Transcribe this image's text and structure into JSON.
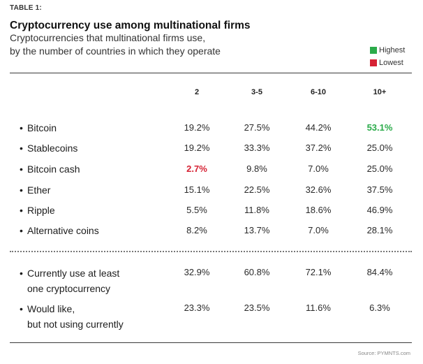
{
  "table_label": "TABLE 1:",
  "title": "Cryptocurrency use among multinational firms",
  "subtitle_line1": "Cryptocurrencies that multinational firms use,",
  "subtitle_line2": "by the number of countries in which they operate",
  "legend": [
    {
      "label": "Highest",
      "color": "#2bab4a"
    },
    {
      "label": "Lowest",
      "color": "#d62234"
    }
  ],
  "columns": [
    "2",
    "3-5",
    "6-10",
    "10+"
  ],
  "rows": [
    {
      "label": "Bitcoin",
      "values": [
        "19.2%",
        "27.5%",
        "44.2%",
        "53.1%"
      ]
    },
    {
      "label": "Stablecoins",
      "values": [
        "19.2%",
        "33.3%",
        "37.2%",
        "25.0%"
      ]
    },
    {
      "label": "Bitcoin cash",
      "values": [
        "2.7%",
        "9.8%",
        "7.0%",
        "25.0%"
      ]
    },
    {
      "label": "Ether",
      "values": [
        "15.1%",
        "22.5%",
        "32.6%",
        "37.5%"
      ]
    },
    {
      "label": "Ripple",
      "values": [
        "5.5%",
        "11.8%",
        "18.6%",
        "46.9%"
      ]
    },
    {
      "label": "Alternative coins",
      "values": [
        "8.2%",
        "13.7%",
        "7.0%",
        "28.1%"
      ]
    }
  ],
  "summary_rows": [
    {
      "label_line1": "Currently use at least",
      "label_line2": "one cryptocurrency",
      "values": [
        "32.9%",
        "60.8%",
        "72.1%",
        "84.4%"
      ]
    },
    {
      "label_line1": "Would like,",
      "label_line2": "but not using currently",
      "values": [
        "23.3%",
        "23.5%",
        "11.6%",
        "6.3%"
      ]
    }
  ],
  "source": "Source: PYMNTS.com"
}
